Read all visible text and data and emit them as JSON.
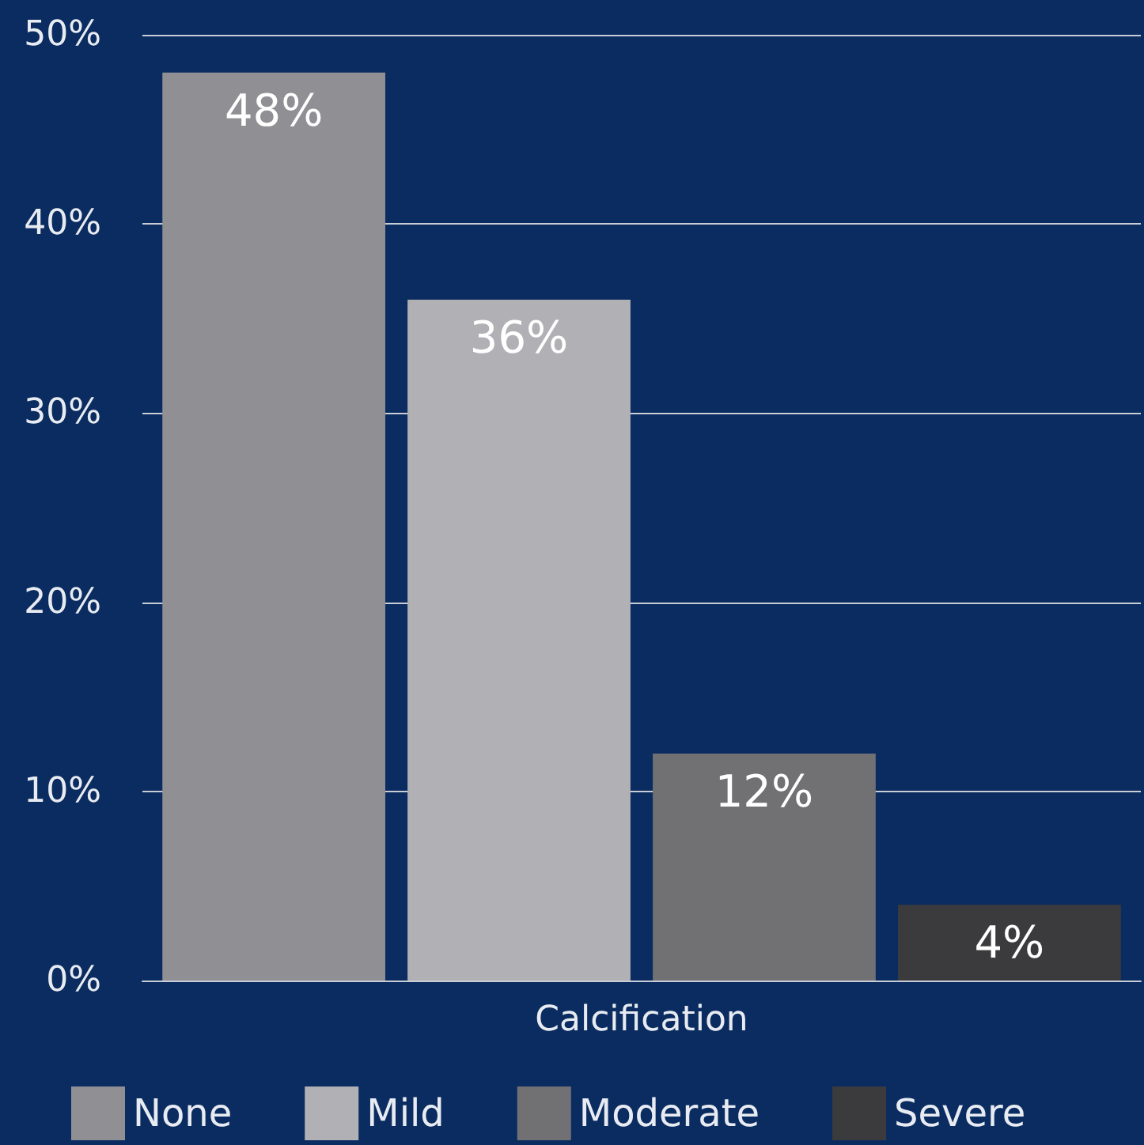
{
  "chart_data": {
    "type": "bar",
    "categories": [
      "Calcification"
    ],
    "series": [
      {
        "name": "None",
        "color": "#8f8f94",
        "values": [
          48
        ],
        "value_labels": [
          "48%"
        ]
      },
      {
        "name": "Mild",
        "color": "#b1b1b5",
        "values": [
          36
        ],
        "value_labels": [
          "36%"
        ]
      },
      {
        "name": "Moderate",
        "color": "#717174",
        "values": [
          12
        ],
        "value_labels": [
          "12%"
        ]
      },
      {
        "name": "Severe",
        "color": "#3b3b3d",
        "values": [
          4
        ],
        "value_labels": [
          "4%"
        ]
      }
    ],
    "ylim": [
      0,
      50
    ],
    "yticks": [
      {
        "value": 0,
        "label": "0%"
      },
      {
        "value": 10,
        "label": "10%"
      },
      {
        "value": 20,
        "label": "20%"
      },
      {
        "value": 30,
        "label": "30%"
      },
      {
        "value": 40,
        "label": "40%"
      },
      {
        "value": 50,
        "label": "50%"
      }
    ],
    "grid": "y",
    "legend": "bottom"
  }
}
